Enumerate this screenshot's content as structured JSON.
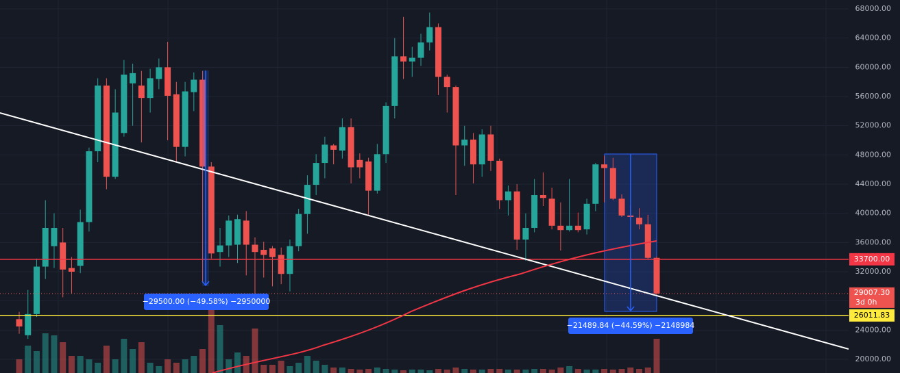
{
  "chart_data": {
    "type": "candlestick",
    "ylim": [
      18125,
      69219
    ],
    "yticks": [
      {
        "value": 20000,
        "label": "20000.00"
      },
      {
        "value": 24000,
        "label": "24000.00"
      },
      {
        "value": 28000,
        "label": "28000.00"
      },
      {
        "value": 32000,
        "label": "32000.00"
      },
      {
        "value": 36000,
        "label": "36000.00"
      },
      {
        "value": 40000,
        "label": "40000.00"
      },
      {
        "value": 44000,
        "label": "44000.00"
      },
      {
        "value": 48000,
        "label": "48000.00"
      },
      {
        "value": 52000,
        "label": "52000.00"
      },
      {
        "value": 56000,
        "label": "56000.00"
      },
      {
        "value": 60000,
        "label": "60000.00"
      },
      {
        "value": 64000,
        "label": "64000.00"
      },
      {
        "value": 68000,
        "label": "68000.00"
      }
    ],
    "grid": true,
    "up_color": "#26a69a",
    "down_color": "#ef5350",
    "open": [
      25500,
      23300,
      26200,
      32700,
      35500,
      36000,
      32500,
      32800,
      38800,
      48500,
      57500,
      45000,
      51000,
      57800,
      57500,
      55800,
      58400,
      60000,
      56300,
      49100,
      56600,
      58300,
      46400,
      34700,
      35600,
      35700,
      39000,
      35700,
      35000,
      35200,
      34300,
      31700,
      35500,
      39900,
      43900,
      46900,
      49300,
      48600,
      51800,
      47300,
      47100,
      43100,
      48100,
      54700,
      61500,
      60800,
      61300,
      63400,
      65500,
      58700,
      57300,
      49300,
      50100,
      46700,
      50800,
      47200,
      41800,
      43000,
      36400,
      38000,
      42500,
      42000,
      38300,
      37700,
      38300,
      37800,
      41300,
      46700,
      46200,
      42000,
      39700,
      39400,
      38500,
      33900
    ],
    "high": [
      26500,
      29500,
      33800,
      41800,
      40000,
      38000,
      34000,
      40500,
      49000,
      58500,
      58500,
      57000,
      61000,
      60500,
      59500,
      59800,
      61200,
      63500,
      58000,
      58000,
      59300,
      59500,
      47000,
      38000,
      39700,
      39800,
      40300,
      36700,
      36100,
      35500,
      35300,
      36400,
      40600,
      45200,
      48100,
      50500,
      49500,
      53000,
      53000,
      48200,
      47600,
      49500,
      55200,
      64000,
      66900,
      62800,
      64600,
      67500,
      66000,
      59000,
      57500,
      52000,
      51000,
      51500,
      52000,
      47500,
      43800,
      44000,
      40000,
      44700,
      45600,
      43500,
      41500,
      44700,
      40100,
      42000,
      46900,
      47900,
      47600,
      42600,
      41100,
      40700,
      39800,
      34100
    ],
    "low": [
      23500,
      22800,
      25800,
      31000,
      32500,
      28500,
      29000,
      31800,
      37500,
      47000,
      43300,
      44700,
      50500,
      52000,
      49700,
      53800,
      57000,
      50000,
      47000,
      47800,
      54000,
      30500,
      33800,
      32700,
      34000,
      33200,
      31500,
      27700,
      31200,
      30000,
      30300,
      29300,
      34800,
      37200,
      42500,
      44800,
      46700,
      47500,
      44100,
      44800,
      39700,
      42700,
      46900,
      53000,
      58400,
      58700,
      60200,
      62300,
      56200,
      53800,
      42500,
      46500,
      44100,
      45000,
      45800,
      40600,
      39700,
      35000,
      33500,
      37400,
      41000,
      37800,
      34900,
      37500,
      37400,
      37100,
      40300,
      41500,
      41800,
      39500,
      39000,
      37800,
      33700,
      28800
    ],
    "close": [
      24500,
      26200,
      32700,
      38000,
      38000,
      32300,
      32000,
      38800,
      48500,
      57500,
      45000,
      53800,
      59000,
      59200,
      55800,
      58500,
      60000,
      56100,
      49100,
      56700,
      58300,
      46400,
      34500,
      35600,
      39000,
      39200,
      35700,
      34700,
      34300,
      34000,
      31700,
      35500,
      39900,
      43900,
      46900,
      49400,
      48700,
      51800,
      46300,
      46300,
      43100,
      48100,
      54700,
      61500,
      60800,
      61300,
      63400,
      65500,
      58700,
      57300,
      49300,
      50100,
      46700,
      50800,
      47200,
      41800,
      43000,
      36400,
      38000,
      42500,
      42100,
      38300,
      37700,
      38300,
      37700,
      41300,
      46700,
      46200,
      42000,
      39700,
      39500,
      38500,
      33900,
      29007.3
    ],
    "volume": [
      20,
      40,
      32,
      58,
      55,
      45,
      25,
      25,
      20,
      15,
      40,
      20,
      50,
      35,
      45,
      15,
      10,
      20,
      15,
      20,
      25,
      35,
      100,
      70,
      20,
      30,
      25,
      65,
      12,
      12,
      18,
      10,
      15,
      25,
      18,
      12,
      8,
      8,
      6,
      5,
      6,
      8,
      6,
      5,
      4,
      5,
      5,
      4,
      6,
      5,
      8,
      6,
      5,
      5,
      6,
      6,
      5,
      5,
      5,
      6,
      6,
      5,
      8,
      10,
      6,
      5,
      5,
      6,
      5,
      6,
      8,
      6,
      8,
      50
    ],
    "price_lines": [
      {
        "value": 33700,
        "label": "33700.00",
        "color": "#f23645"
      },
      {
        "value": 26011.83,
        "label": "26011.83",
        "color": "#ffeb3b"
      }
    ],
    "last_price": {
      "value": 29007.3,
      "label": "29007.30",
      "countdown": "3d 0h"
    },
    "measures": [
      {
        "text": "−29500.00 (−49.58%) −2950000"
      },
      {
        "text": "−21489.84 (−44.59%) −2148984"
      }
    ]
  }
}
